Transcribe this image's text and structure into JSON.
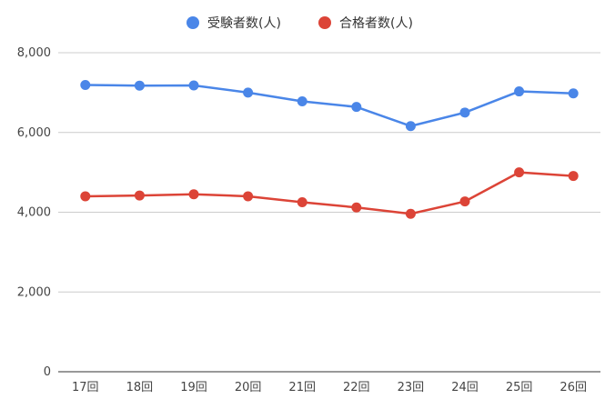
{
  "chart_data": {
    "type": "line",
    "categories": [
      "17回",
      "18回",
      "19回",
      "20回",
      "21回",
      "22回",
      "23回",
      "24回",
      "25回",
      "26回"
    ],
    "series": [
      {
        "name": "受験者数(人)",
        "color": "#4a86e8",
        "values": [
          7190,
          7175,
          7180,
          7000,
          6780,
          6640,
          6160,
          6500,
          7030,
          6980
        ]
      },
      {
        "name": "合格者数(人)",
        "color": "#dc4437",
        "values": [
          4400,
          4420,
          4450,
          4400,
          4250,
          4120,
          3960,
          4270,
          5000,
          4910
        ]
      }
    ],
    "y_ticks": [
      "0",
      "2,000",
      "4,000",
      "6,000",
      "8,000"
    ],
    "ylim": [
      0,
      8000
    ],
    "grid": true,
    "legend_position": "top-center"
  }
}
